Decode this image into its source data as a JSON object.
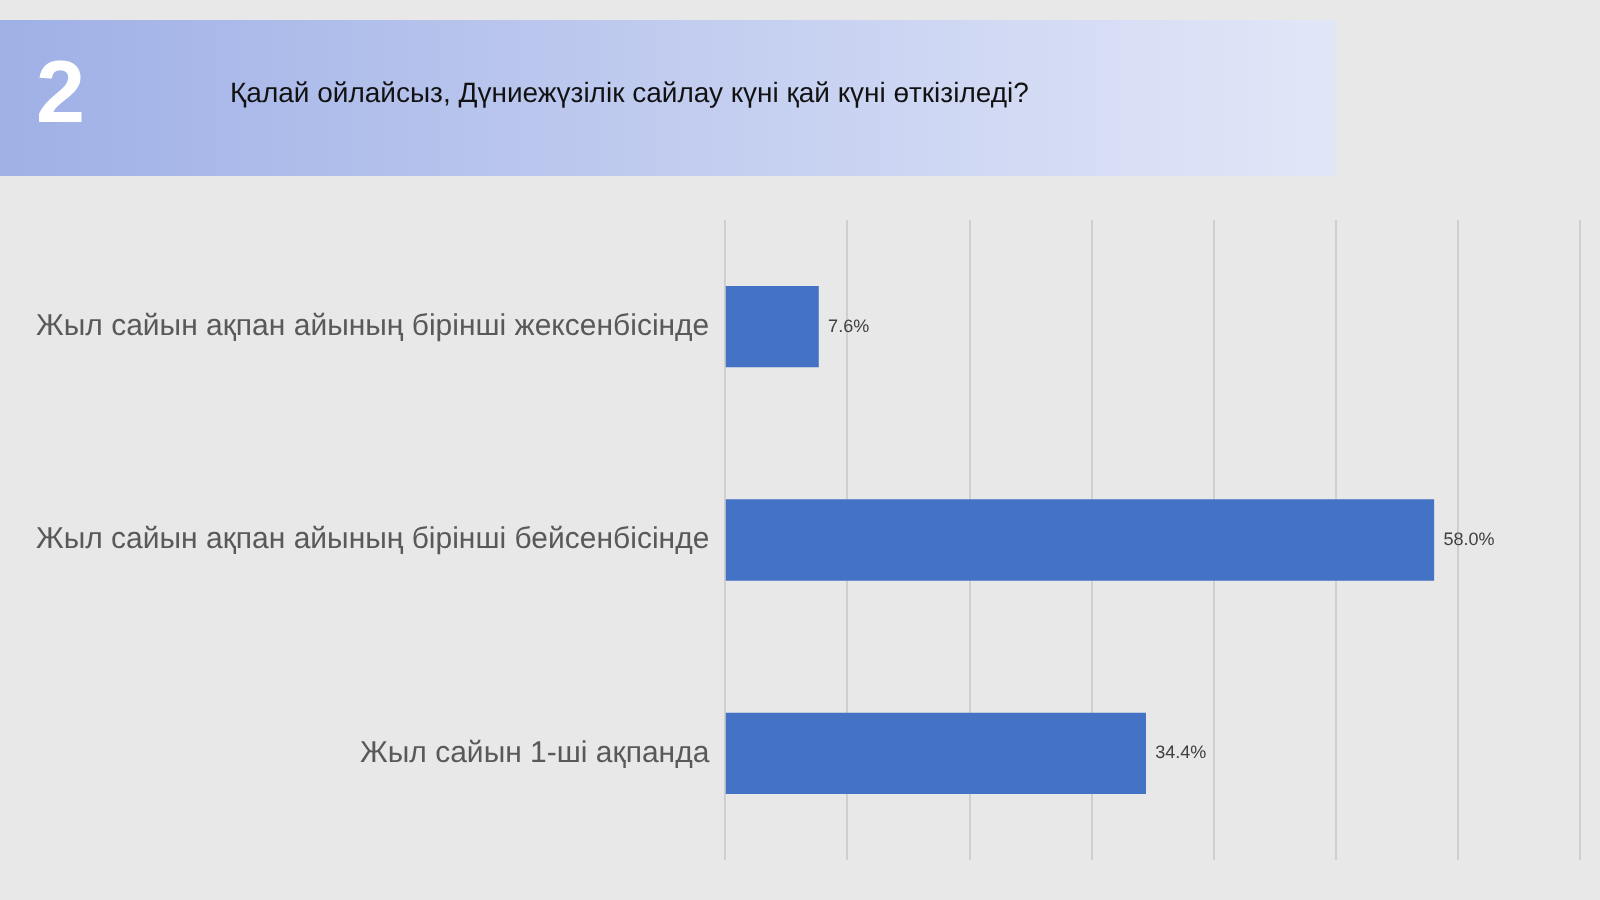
{
  "chart_data": {
    "type": "bar",
    "orientation": "horizontal",
    "title": "Қалай ойлайсыз, Дүниежүзілік сайлау күні қай күні өткізіледі?",
    "annotations": [
      "2"
    ],
    "categories": [
      "Жыл сайын ақпан айының бірінші жексенбісінде",
      "Жыл сайын ақпан айының бірінші бейсенбісінде",
      "Жыл сайын 1-ші ақпанда"
    ],
    "values": [
      7.6,
      58.0,
      34.4
    ],
    "color": "#4472c4",
    "value_labels": [
      "7.6%",
      "58.0%",
      "34.4%"
    ],
    "grid": "x",
    "tick_labels": "y",
    "legend": false
  }
}
